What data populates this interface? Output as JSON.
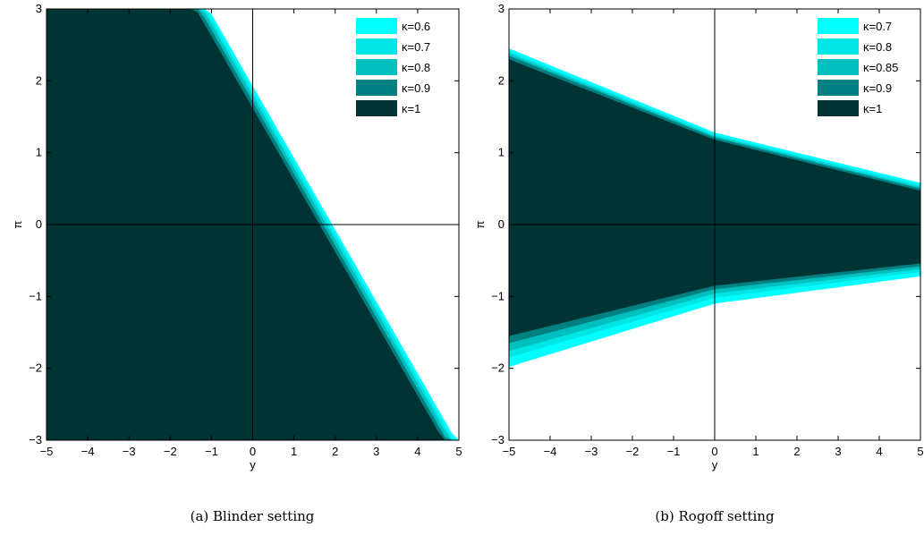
{
  "chart_data": [
    {
      "type": "area",
      "caption": "(a)  Blinder setting",
      "xlabel": "y",
      "ylabel": "π",
      "xlim": [
        -5,
        5
      ],
      "ylim": [
        -3,
        3
      ],
      "xticks": [
        "−5",
        "−4",
        "−3",
        "−2",
        "−1",
        "0",
        "1",
        "2",
        "3",
        "4",
        "5"
      ],
      "yticks": [
        "3",
        "2",
        "1",
        "0",
        "−1",
        "−2",
        "−3"
      ],
      "legend_position": "top-right",
      "region_form": "below-line",
      "series": [
        {
          "name": "κ=0.6",
          "color": "#00ffff",
          "slope": -1.0,
          "intercept": 1.93
        },
        {
          "name": "κ=0.7",
          "color": "#00e6e6",
          "slope": -1.0,
          "intercept": 1.86
        },
        {
          "name": "κ=0.8",
          "color": "#00bfbf",
          "slope": -1.0,
          "intercept": 1.79
        },
        {
          "name": "κ=0.9",
          "color": "#008080",
          "slope": -1.0,
          "intercept": 1.71
        },
        {
          "name": "κ=1",
          "color": "#003333",
          "slope": -1.0,
          "intercept": 1.62
        }
      ]
    },
    {
      "type": "area",
      "caption": "(b)  Rogoff setting",
      "xlabel": "y",
      "ylabel": "π",
      "xlim": [
        -5,
        5
      ],
      "ylim": [
        -3,
        3
      ],
      "xticks": [
        "−5",
        "−4",
        "−3",
        "−2",
        "−1",
        "0",
        "1",
        "2",
        "3",
        "4",
        "5"
      ],
      "yticks": [
        "3",
        "2",
        "1",
        "0",
        "−1",
        "−2",
        "−3"
      ],
      "legend_position": "top-right",
      "region_form": "band",
      "series": [
        {
          "name": "κ=0.7",
          "color": "#00ffff",
          "upper": [
            2.45,
            1.28,
            0.58
          ],
          "lower": [
            -1.98,
            -1.1,
            -0.72
          ]
        },
        {
          "name": "κ=0.8",
          "color": "#00e6e6",
          "upper": [
            2.41,
            1.25,
            0.55
          ],
          "lower": [
            -1.85,
            -1.02,
            -0.66
          ]
        },
        {
          "name": "κ=0.85",
          "color": "#00bfbf",
          "upper": [
            2.38,
            1.23,
            0.52
          ],
          "lower": [
            -1.76,
            -0.96,
            -0.62
          ]
        },
        {
          "name": "κ=0.9",
          "color": "#008080",
          "upper": [
            2.35,
            1.21,
            0.5
          ],
          "lower": [
            -1.65,
            -0.9,
            -0.58
          ]
        },
        {
          "name": "κ=1",
          "color": "#003333",
          "upper": [
            2.3,
            1.18,
            0.47
          ],
          "lower": [
            -1.55,
            -0.85,
            -0.54
          ]
        }
      ]
    }
  ]
}
